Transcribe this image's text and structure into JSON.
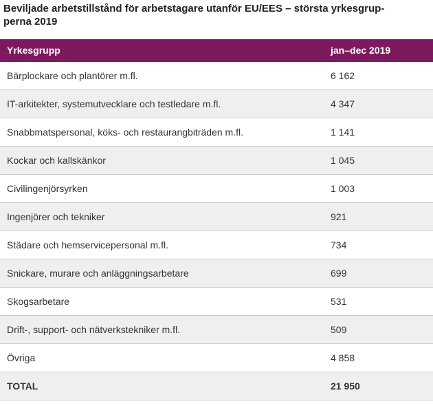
{
  "page": {
    "title_line1": "Beviljade arbetstillstånd för arbetstagare utanför EU/EES – största yrkesgrup-",
    "title_line2": "perna 2019"
  },
  "table": {
    "columns": {
      "group": "Yrkesgrupp",
      "period": "jan–dec 2019"
    },
    "rows": [
      {
        "label": "Bärplockare och plantörer m.fl.",
        "value": "6 162"
      },
      {
        "label": "IT-arkitekter, systemutvecklare och testledare m.fl.",
        "value": "4 347"
      },
      {
        "label": "Snabbmatspersonal, köks- och restaurangbiträden m.fl.",
        "value": "1 141"
      },
      {
        "label": "Kockar och kallskänkor",
        "value": "1 045"
      },
      {
        "label": "Civilingenjörsyrken",
        "value": "1 003"
      },
      {
        "label": "Ingenjörer och tekniker",
        "value": "921"
      },
      {
        "label": "Städare och hemservicepersonal m.fl.",
        "value": "734"
      },
      {
        "label": "Snickare, murare och anläggningsarbetare",
        "value": "699"
      },
      {
        "label": "Skogsarbetare",
        "value": "531"
      },
      {
        "label": "Drift-, support- och nätverkstekniker m.fl.",
        "value": "509"
      },
      {
        "label": "Övriga",
        "value": "4 858"
      }
    ],
    "total": {
      "label": "TOTAL",
      "value": "21 950"
    }
  },
  "colors": {
    "header_bg": "#7d1a5e",
    "row_alt_bg": "#efefef",
    "border": "#cccccc",
    "text": "#333333",
    "title_text": "#222222"
  },
  "chart_data": {
    "type": "table",
    "title": "Beviljade arbetstillstånd för arbetstagare utanför EU/EES – största yrkesgrupperna 2019",
    "columns": [
      "Yrkesgrupp",
      "jan–dec 2019"
    ],
    "categories": [
      "Bärplockare och plantörer m.fl.",
      "IT-arkitekter, systemutvecklare och testledare m.fl.",
      "Snabbmatspersonal, köks- och restaurangbiträden m.fl.",
      "Kockar och kallskänkor",
      "Civilingenjörsyrken",
      "Ingenjörer och tekniker",
      "Städare och hemservicepersonal m.fl.",
      "Snickare, murare och anläggningsarbetare",
      "Skogsarbetare",
      "Drift-, support- och nätverkstekniker m.fl.",
      "Övriga"
    ],
    "values": [
      6162,
      4347,
      1141,
      1045,
      1003,
      921,
      734,
      699,
      531,
      509,
      4858
    ],
    "total": 21950
  }
}
